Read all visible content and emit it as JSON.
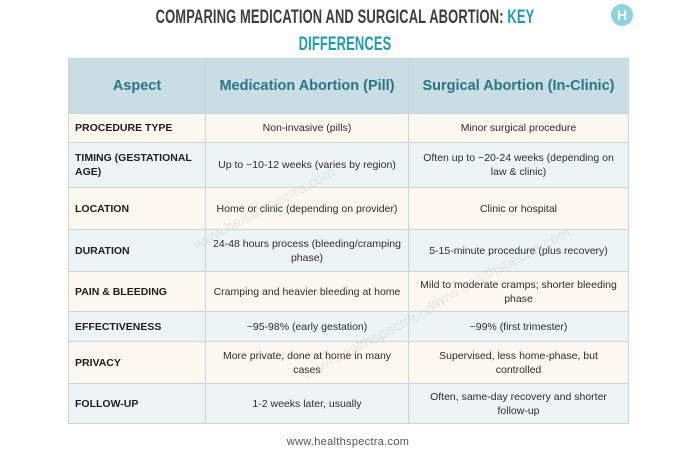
{
  "header": {
    "title_main": "COMPARING MEDICATION AND SURGICAL ABORTION:",
    "title_highlight": "KEY DIFFERENCES",
    "logo": "H"
  },
  "table": {
    "columns": [
      "Aspect",
      "Medication Abortion (Pill)",
      "Surgical Abortion (In-Clinic)"
    ],
    "rows": [
      [
        "PROCEDURE TYPE",
        "Non-invasive (pills)",
        "Minor surgical procedure"
      ],
      [
        "TIMING (GESTATIONAL AGE)",
        "Up to ~10-12 weeks (varies by region)",
        "Often up to ~20-24 weeks (depending on law & clinic)"
      ],
      [
        "LOCATION",
        "Home or clinic (depending on provider)",
        "Clinic or hospital"
      ],
      [
        "DURATION",
        "24-48 hours process (bleeding/cramping phase)",
        "5-15-minute procedure (plus recovery)"
      ],
      [
        "PAIN & BLEEDING",
        "Cramping and heavier bleeding at home",
        "Mild to moderate cramps; shorter bleeding phase"
      ],
      [
        "EFFECTIVENESS",
        "~95-98% (early gestation)",
        "~99% (first trimester)"
      ],
      [
        "PRIVACY",
        "More private, done at home in many cases",
        "Supervised, less home-phase, but controlled"
      ],
      [
        "FOLLOW-UP",
        "1-2 weeks later, usually",
        "Often, same-day recovery and shorter follow-up"
      ]
    ]
  },
  "watermark": "www.healthspectra.com",
  "footer": "www.healthspectra.com"
}
